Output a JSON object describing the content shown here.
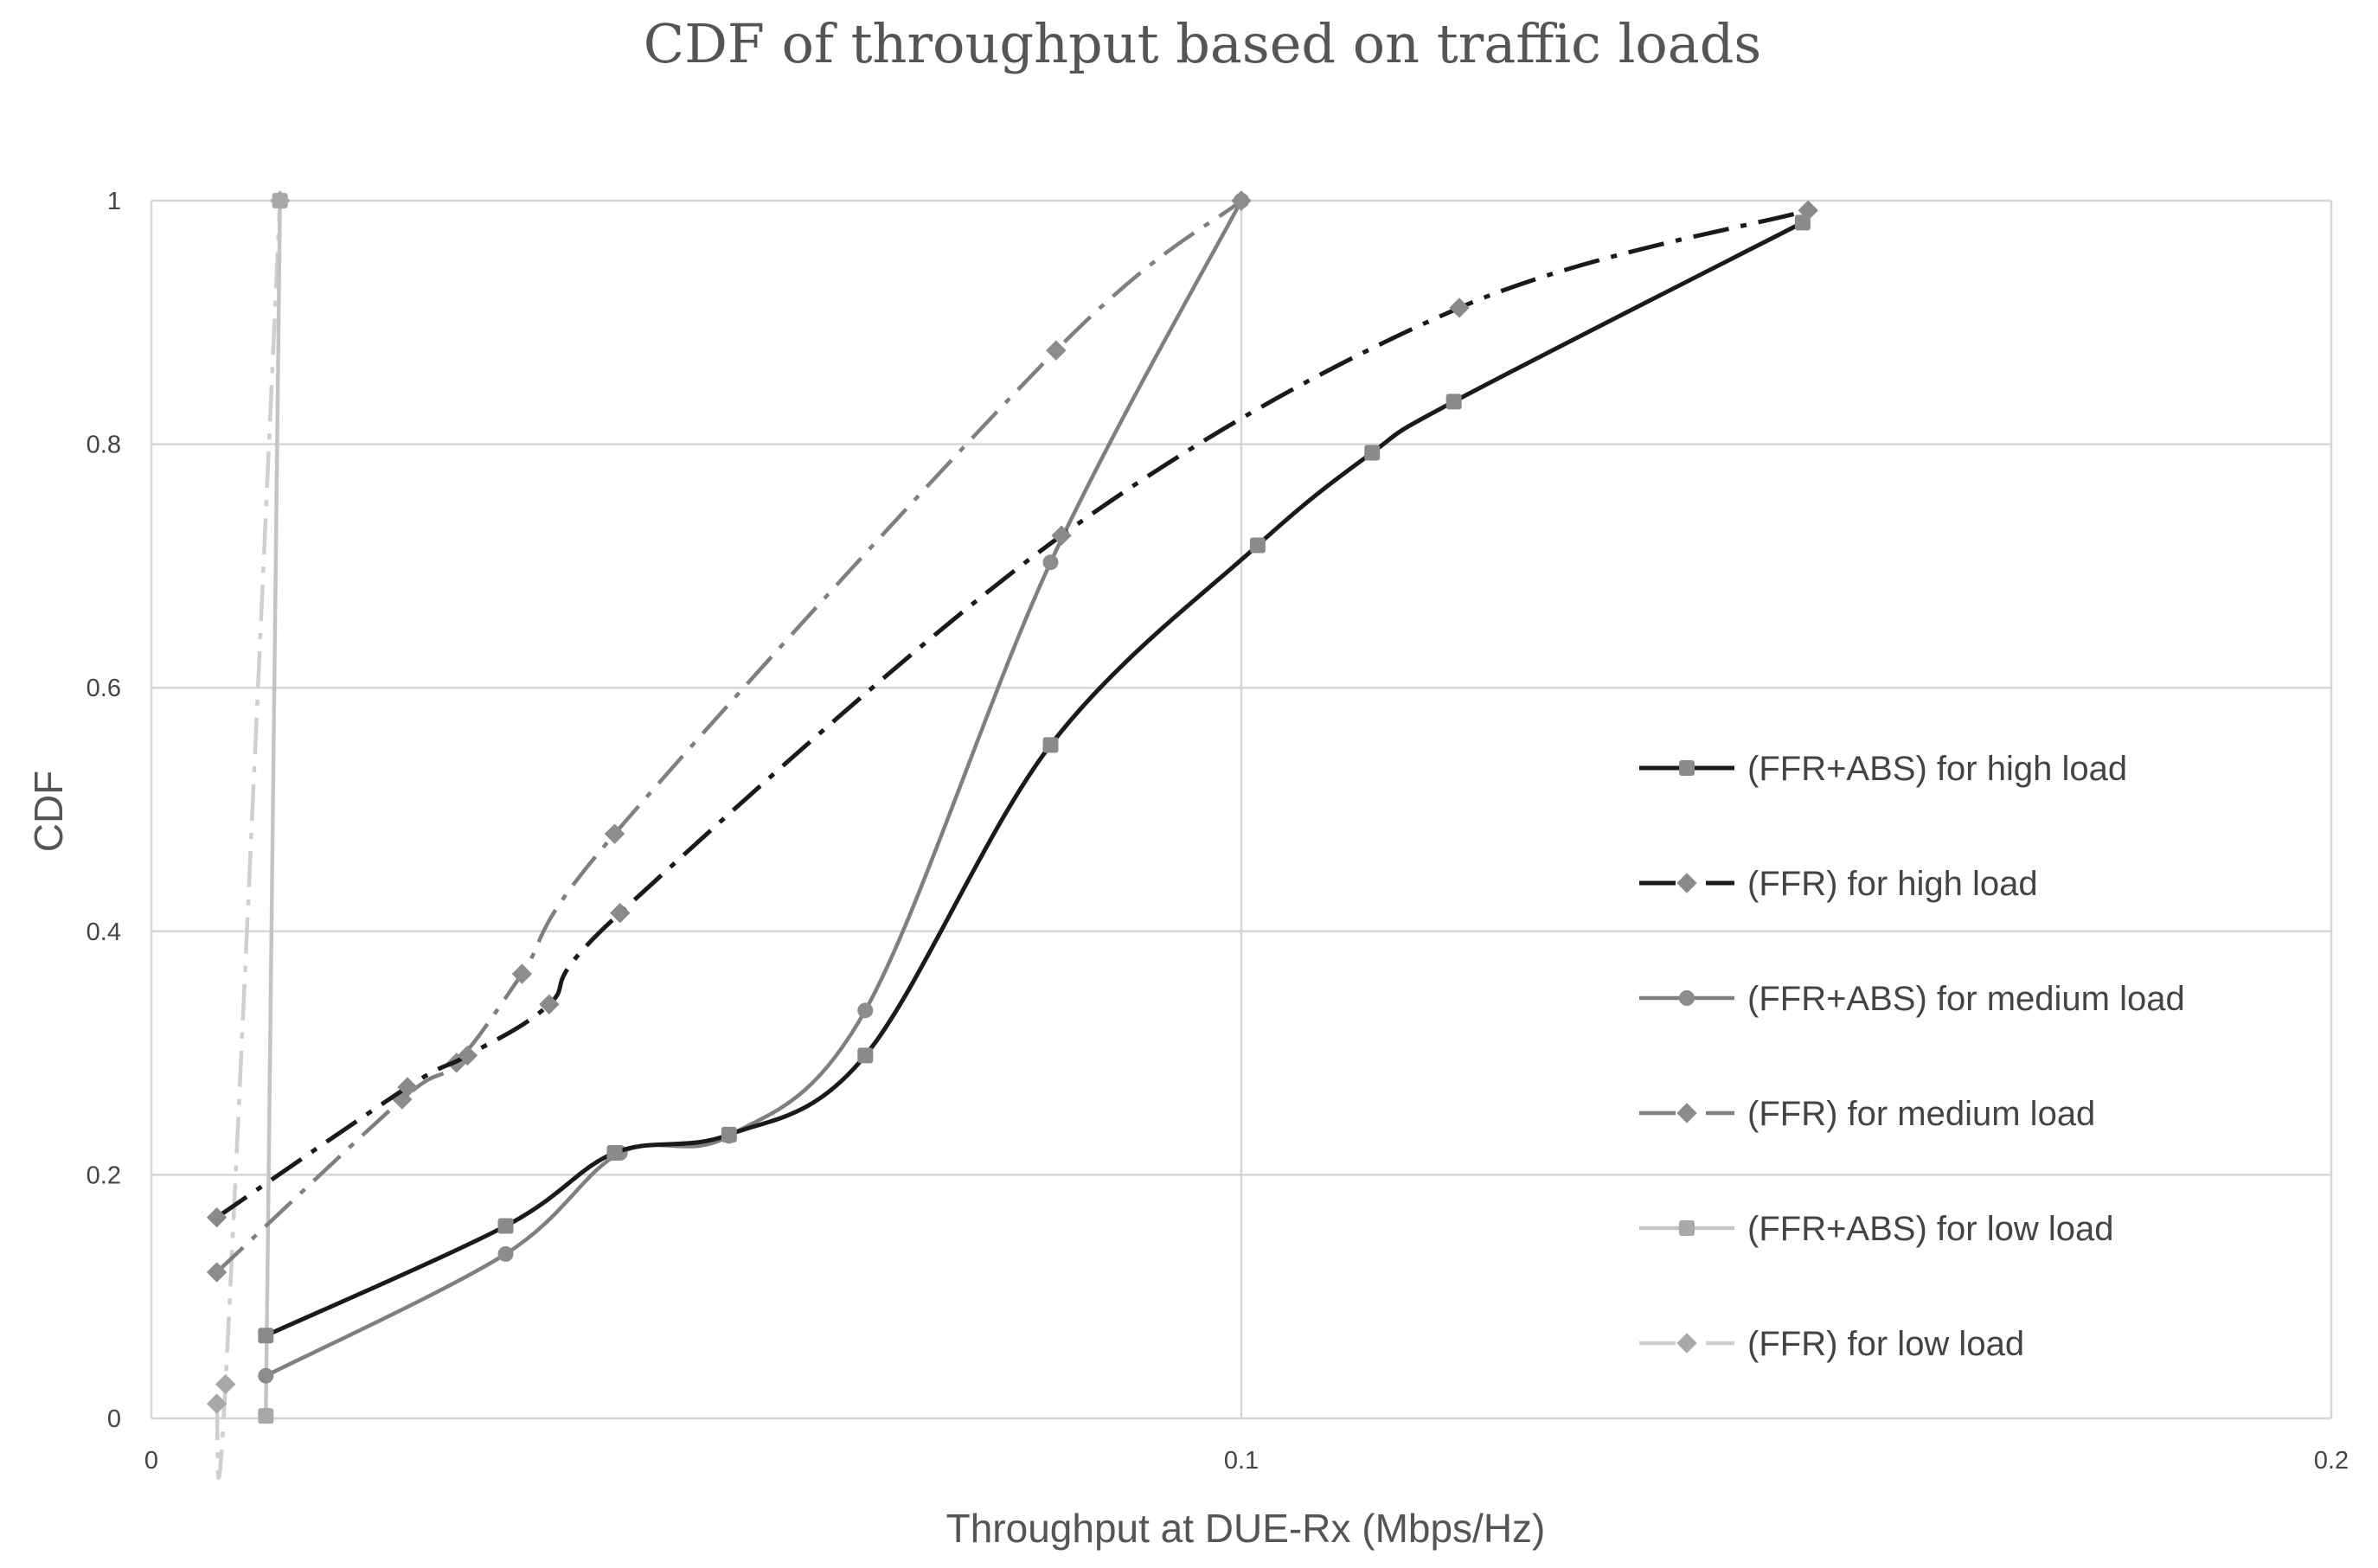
{
  "chart_data": {
    "type": "line",
    "title": "CDF of throughput based on traffic loads",
    "xlabel": "Throughput at DUE-Rx (Mbps/Hz)",
    "ylabel": "CDF",
    "xlim": [
      0,
      0.2
    ],
    "ylim": [
      0,
      1
    ],
    "xticks": [
      0,
      0.1,
      0.2
    ],
    "xtick_labels": [
      "0",
      "0.1",
      "0.2"
    ],
    "yticks": [
      0,
      0.2,
      0.4,
      0.6,
      0.8,
      1
    ],
    "ytick_labels": [
      "0",
      "0.2",
      "0.4",
      "0.6",
      "0.8",
      "1"
    ],
    "grid": true,
    "legend_position": "right",
    "series": [
      {
        "name": "(FFR+ABS) for high load",
        "color": "#1a1a1a",
        "dash": "solid",
        "marker": "square",
        "x": [
          0.0105,
          0.0325,
          0.0425,
          0.053,
          0.0655,
          0.0825,
          0.1015,
          0.112,
          0.1195,
          0.1515
        ],
        "y": [
          0.068,
          0.158,
          0.218,
          0.233,
          0.298,
          0.553,
          0.717,
          0.793,
          0.835,
          0.982
        ]
      },
      {
        "name": "(FFR) for high load",
        "color": "#1a1a1a",
        "dash": "dashdot",
        "marker": "diamond",
        "x": [
          0.006,
          0.0235,
          0.029,
          0.0365,
          0.043,
          0.0835,
          0.12,
          0.152
        ],
        "y": [
          0.165,
          0.272,
          0.298,
          0.34,
          0.415,
          0.725,
          0.912,
          0.992
        ]
      },
      {
        "name": "(FFR+ABS) for medium load",
        "color": "#7f7f7f",
        "dash": "solid",
        "marker": "circle",
        "x": [
          0.0105,
          0.0325,
          0.043,
          0.053,
          0.0655,
          0.0825,
          0.1
        ],
        "y": [
          0.035,
          0.135,
          0.218,
          0.232,
          0.335,
          0.703,
          1.0
        ]
      },
      {
        "name": "(FFR) for medium load",
        "color": "#7f7f7f",
        "dash": "dashdot",
        "marker": "diamond",
        "x": [
          0.006,
          0.023,
          0.028,
          0.034,
          0.0425,
          0.083,
          0.1
        ],
        "y": [
          0.12,
          0.262,
          0.292,
          0.365,
          0.48,
          0.877,
          1.0
        ]
      },
      {
        "name": "(FFR+ABS) for low load",
        "color": "#c4c4c4",
        "dash": "solid",
        "marker": "square",
        "x": [
          0.0105,
          0.0118
        ],
        "y": [
          0.002,
          1.0
        ]
      },
      {
        "name": "(FFR) for low load",
        "color": "#cfcfcf",
        "dash": "dashdot",
        "marker": "diamond",
        "x": [
          0.006,
          0.0068,
          0.0118
        ],
        "y": [
          0.012,
          0.028,
          1.0
        ]
      }
    ]
  }
}
